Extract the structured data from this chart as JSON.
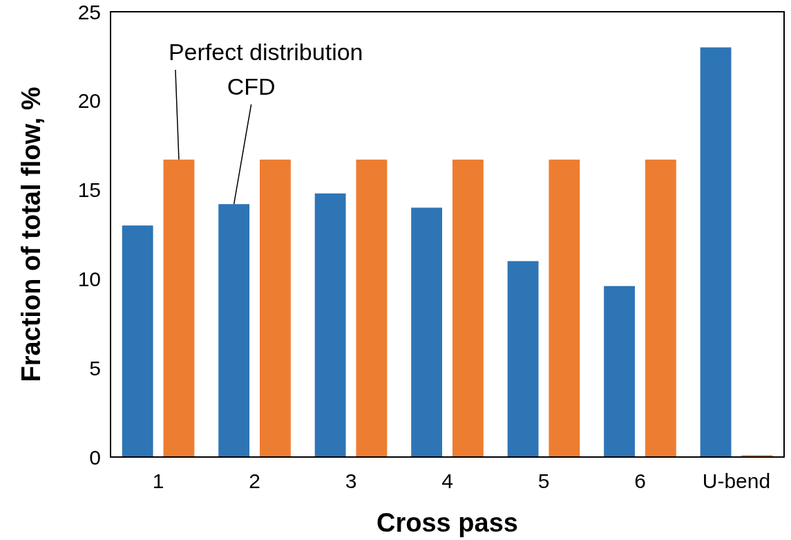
{
  "chart_data": {
    "type": "bar",
    "xlabel": "Cross pass",
    "ylabel": "Fraction of total flow, %",
    "categories": [
      "1",
      "2",
      "3",
      "4",
      "5",
      "6",
      "U-bend"
    ],
    "series": [
      {
        "name": "CFD",
        "color": "#2e75b6",
        "values": [
          13.0,
          14.2,
          14.8,
          14.0,
          11.0,
          9.6,
          23.0
        ]
      },
      {
        "name": "Perfect distribution",
        "color": "#ed7d31",
        "values": [
          16.7,
          16.7,
          16.7,
          16.7,
          16.7,
          16.7,
          0.1
        ]
      }
    ],
    "ylim": [
      0,
      25
    ],
    "yticks": [
      0,
      5,
      10,
      15,
      20,
      25
    ],
    "grid": false
  }
}
